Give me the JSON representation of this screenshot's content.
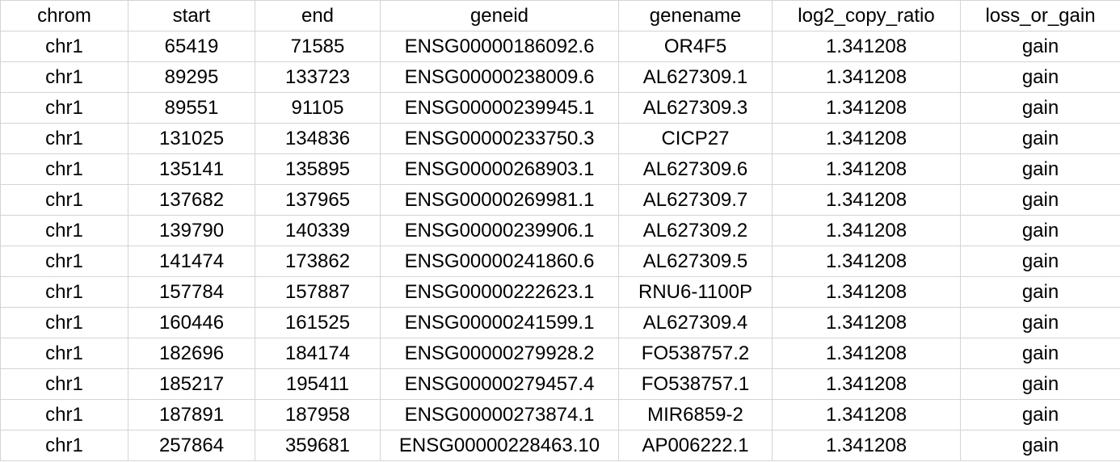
{
  "table": {
    "columns": [
      "chrom",
      "start",
      "end",
      "geneid",
      "genename",
      "log2_copy_ratio",
      "loss_or_gain"
    ],
    "rows": [
      [
        "chr1",
        "65419",
        "71585",
        "ENSG00000186092.6",
        "OR4F5",
        "1.341208",
        "gain"
      ],
      [
        "chr1",
        "89295",
        "133723",
        "ENSG00000238009.6",
        "AL627309.1",
        "1.341208",
        "gain"
      ],
      [
        "chr1",
        "89551",
        "91105",
        "ENSG00000239945.1",
        "AL627309.3",
        "1.341208",
        "gain"
      ],
      [
        "chr1",
        "131025",
        "134836",
        "ENSG00000233750.3",
        "CICP27",
        "1.341208",
        "gain"
      ],
      [
        "chr1",
        "135141",
        "135895",
        "ENSG00000268903.1",
        "AL627309.6",
        "1.341208",
        "gain"
      ],
      [
        "chr1",
        "137682",
        "137965",
        "ENSG00000269981.1",
        "AL627309.7",
        "1.341208",
        "gain"
      ],
      [
        "chr1",
        "139790",
        "140339",
        "ENSG00000239906.1",
        "AL627309.2",
        "1.341208",
        "gain"
      ],
      [
        "chr1",
        "141474",
        "173862",
        "ENSG00000241860.6",
        "AL627309.5",
        "1.341208",
        "gain"
      ],
      [
        "chr1",
        "157784",
        "157887",
        "ENSG00000222623.1",
        "RNU6-1100P",
        "1.341208",
        "gain"
      ],
      [
        "chr1",
        "160446",
        "161525",
        "ENSG00000241599.1",
        "AL627309.4",
        "1.341208",
        "gain"
      ],
      [
        "chr1",
        "182696",
        "184174",
        "ENSG00000279928.2",
        "FO538757.2",
        "1.341208",
        "gain"
      ],
      [
        "chr1",
        "185217",
        "195411",
        "ENSG00000279457.4",
        "FO538757.1",
        "1.341208",
        "gain"
      ],
      [
        "chr1",
        "187891",
        "187958",
        "ENSG00000273874.1",
        "MIR6859-2",
        "1.341208",
        "gain"
      ],
      [
        "chr1",
        "257864",
        "359681",
        "ENSG00000228463.10",
        "AP006222.1",
        "1.341208",
        "gain"
      ]
    ]
  }
}
